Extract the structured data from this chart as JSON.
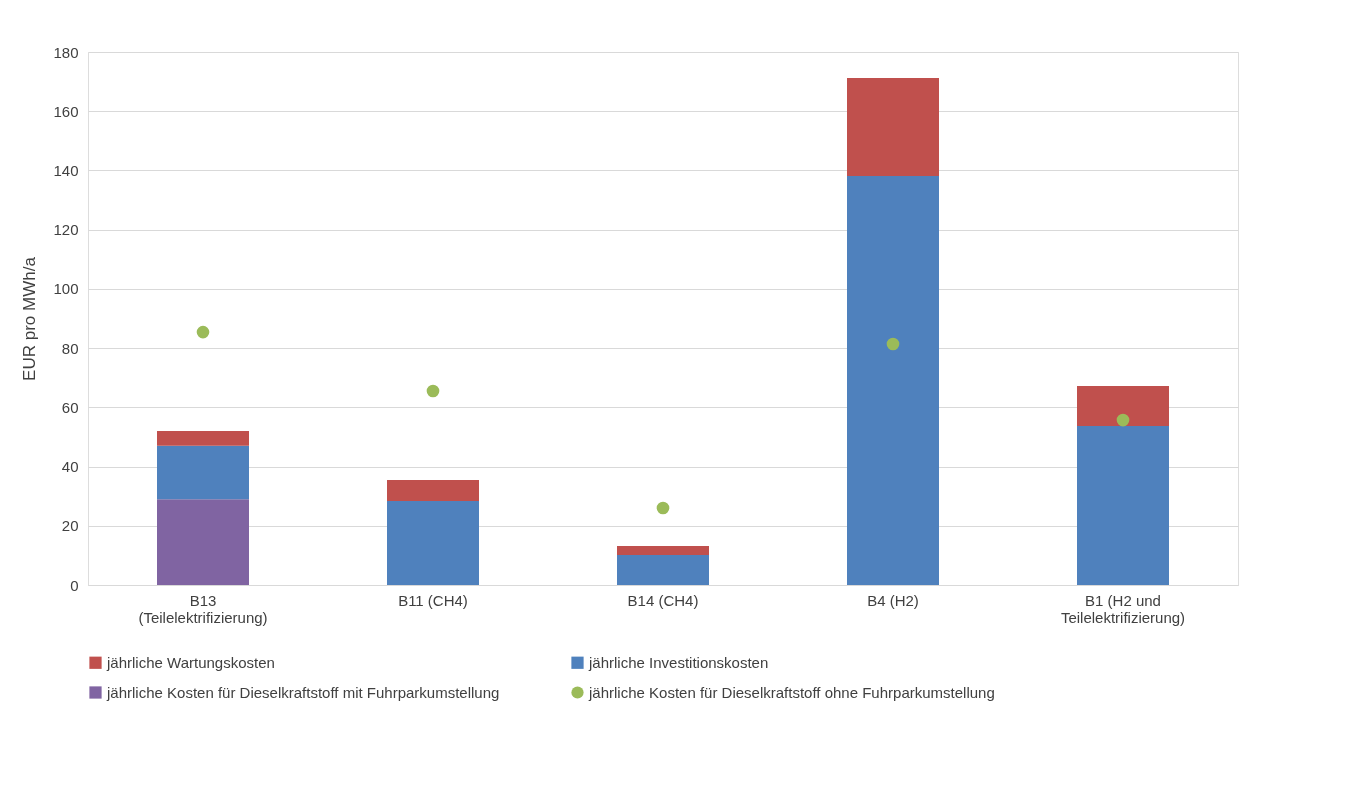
{
  "chart_data": {
    "type": "bar",
    "stacked": true,
    "ylabel": "EUR pro MWh/a",
    "categories": [
      "B13 (Teilelektrifizierung)",
      "B11 (CH4)",
      "B14 (CH4)",
      "B4 (H2)",
      "B1 (H2 und Teilelektrifizierung)"
    ],
    "series": [
      {
        "name": "jährliche Kosten für Dieselkraftstoff mit Fuhrparkumstellung",
        "color": "#8064a2",
        "values": [
          29,
          null,
          null,
          null,
          null
        ]
      },
      {
        "name": "jährliche Investitionskosten",
        "color": "#4f81bd",
        "values": [
          18,
          28.4,
          10.1,
          138.1,
          53.7
        ]
      },
      {
        "name": "jährliche Wartungskosten",
        "color": "#c0504d",
        "values": [
          5,
          7.1,
          3.1,
          33.1,
          13.5
        ]
      },
      {
        "name": "jährliche Kosten für Dieselkraftstoff ohne Fuhrparkumstellung",
        "color": "#9bbb59",
        "type": "scatter",
        "marker": "circle",
        "values": [
          85.4,
          65.5,
          26,
          81.4,
          55.7
        ]
      }
    ],
    "ylim": [
      0,
      180
    ],
    "yticks": [
      0,
      20,
      40,
      60,
      80,
      100,
      120,
      140,
      160,
      180
    ],
    "grid": "y",
    "legend": "bottom"
  }
}
